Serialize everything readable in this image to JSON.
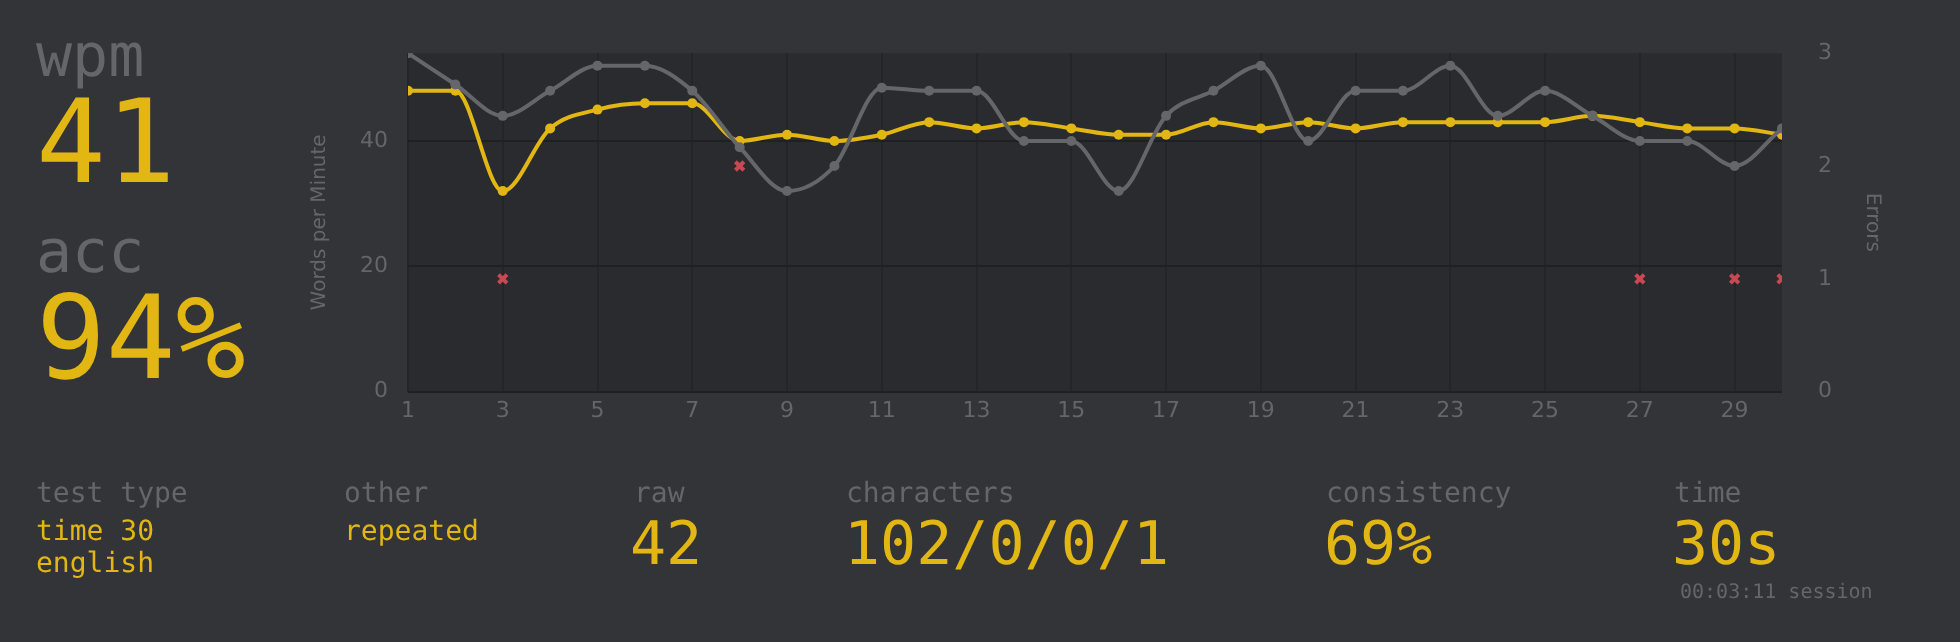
{
  "chart_data": {
    "type": "line",
    "xlabel": null,
    "ylabel": "Words per Minute",
    "y2label": "Errors",
    "x": [
      1,
      2,
      3,
      4,
      5,
      6,
      7,
      8,
      9,
      10,
      11,
      12,
      13,
      14,
      15,
      16,
      17,
      18,
      19,
      20,
      21,
      22,
      23,
      24,
      25,
      26,
      27,
      28,
      29,
      30
    ],
    "series": [
      {
        "color": "#646669",
        "values": [
          54,
          49,
          44,
          48,
          52,
          52,
          48,
          39,
          32,
          36,
          48.5,
          48,
          48,
          40,
          40,
          32,
          44,
          48,
          52,
          40,
          48,
          48,
          52,
          44,
          48,
          44,
          40,
          40,
          36,
          42
        ]
      },
      {
        "color": "#e2b714",
        "values": [
          48,
          48,
          32,
          42,
          45,
          46,
          46,
          40,
          41,
          40,
          41,
          43,
          42,
          43,
          42,
          41,
          41,
          43,
          42,
          43,
          42,
          43,
          43,
          43,
          43,
          44,
          43,
          42,
          42,
          41
        ]
      },
      {
        "type": "scatter",
        "axis": "y2",
        "marker": "cross",
        "color": "#ca4754",
        "values": [
          null,
          null,
          1,
          null,
          null,
          null,
          null,
          2,
          null,
          null,
          null,
          null,
          null,
          null,
          null,
          null,
          null,
          null,
          null,
          null,
          null,
          null,
          null,
          null,
          null,
          null,
          1,
          null,
          1,
          1
        ]
      }
    ],
    "xlim": [
      1,
      30
    ],
    "xticks": [
      1,
      3,
      5,
      7,
      9,
      11,
      13,
      15,
      17,
      19,
      21,
      23,
      25,
      27,
      29
    ],
    "ylim": [
      0,
      54
    ],
    "yticks": [
      0,
      20,
      40
    ],
    "y2lim": [
      0,
      3
    ],
    "y2ticks": [
      0,
      1,
      2,
      3
    ],
    "grid": true,
    "legend": false,
    "marker": "circle",
    "annotations": [
      "wpm",
      "41",
      "acc",
      "94%",
      "test type",
      "time 30",
      "english",
      "other",
      "repeated",
      "raw",
      "42",
      "characters",
      "102/0/0/1",
      "consistency",
      "69%",
      "time",
      "30s",
      "00:03:11 session"
    ]
  }
}
